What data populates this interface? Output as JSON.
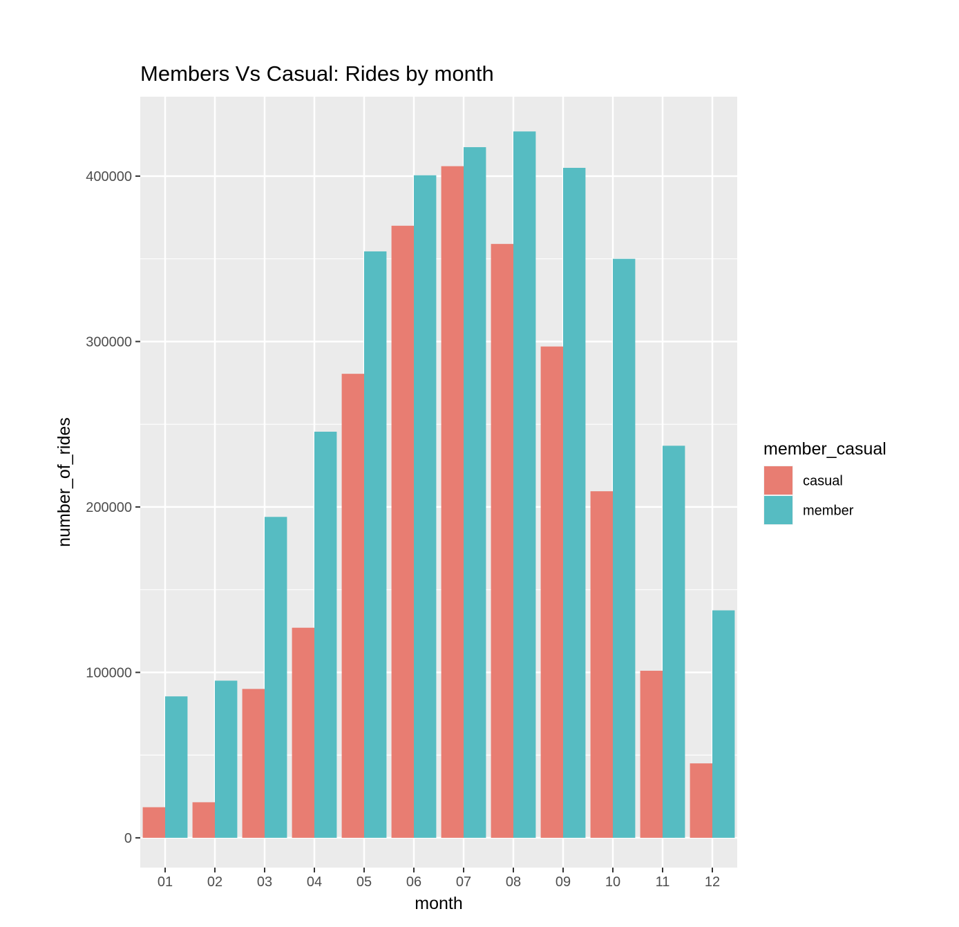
{
  "chart_data": {
    "type": "bar",
    "title": "Members Vs Casual: Rides by month",
    "xlabel": "month",
    "ylabel": "number_of_rides",
    "categories": [
      "01",
      "02",
      "03",
      "04",
      "05",
      "06",
      "07",
      "08",
      "09",
      "10",
      "11",
      "12"
    ],
    "series": [
      {
        "name": "casual",
        "color": "#E87D72",
        "values": [
          18500,
          21500,
          90000,
          127000,
          280500,
          370000,
          406000,
          359000,
          297000,
          209500,
          101000,
          45000
        ]
      },
      {
        "name": "member",
        "color": "#56BCC2",
        "values": [
          85500,
          95000,
          194000,
          245500,
          354500,
          400500,
          417500,
          427000,
          405000,
          350000,
          237000,
          137500
        ]
      }
    ],
    "ylim": [
      -18000,
      448000
    ],
    "yticks": [
      0,
      100000,
      200000,
      300000,
      400000
    ],
    "ytick_labels": [
      "0",
      "100000",
      "200000",
      "300000",
      "400000"
    ],
    "grid": true,
    "panel_background": "#EBEBEB",
    "legend": {
      "title": "member_casual",
      "position": "right",
      "items": [
        "casual",
        "member"
      ]
    }
  }
}
